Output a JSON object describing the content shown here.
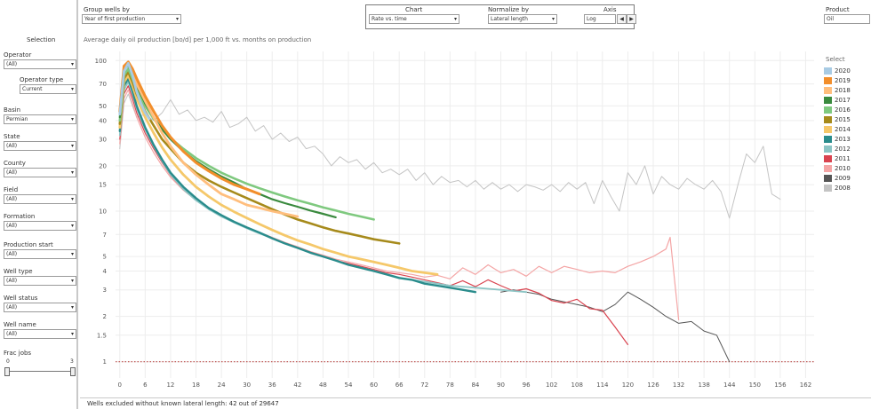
{
  "left_panel": {
    "title": "Selection",
    "filters": [
      {
        "label": "Operator",
        "value": "(All)"
      },
      {
        "label": "Operator type",
        "value": "Current"
      },
      {
        "label": "Basin",
        "value": "Permian"
      },
      {
        "label": "State",
        "value": "(All)"
      },
      {
        "label": "County",
        "value": "(All)"
      },
      {
        "label": "Field",
        "value": "(All)"
      },
      {
        "label": "Formation",
        "value": "(All)"
      },
      {
        "label": "Production start",
        "value": "(All)"
      },
      {
        "label": "Well type",
        "value": "(All)"
      },
      {
        "label": "Well status",
        "value": "(All)"
      },
      {
        "label": "Well name",
        "value": "(All)"
      }
    ],
    "frac_jobs": {
      "label": "Frac jobs",
      "min": "0",
      "max": "3"
    }
  },
  "controls": {
    "group_label": "Group wells by",
    "group_value": "Year of first production",
    "chart_label": "Chart",
    "chart_value": "Rate vs. time",
    "normalize_label": "Normalize by",
    "normalize_value": "Lateral length",
    "axis_label": "Axis",
    "axis_value": "Log",
    "product_label": "Product",
    "product_value": "Oil"
  },
  "status": "Wells excluded without known lateral length: 42 out of 29647",
  "legend_title": "Select",
  "chart_data": {
    "type": "line",
    "title": "Average daily oil production [bo/d] per 1,000 ft vs. months on production",
    "x_ticks": [
      0,
      6,
      12,
      18,
      24,
      30,
      36,
      42,
      48,
      54,
      60,
      66,
      72,
      78,
      84,
      90,
      96,
      102,
      108,
      114,
      120,
      126,
      132,
      138,
      144,
      150,
      156,
      162
    ],
    "y_ticks": [
      1,
      1.5,
      2,
      3,
      4,
      5,
      7,
      10,
      15,
      20,
      30,
      40,
      50,
      70,
      100
    ],
    "xlim": [
      -1,
      164
    ],
    "ylim": [
      0.78,
      115
    ],
    "yscale": "log",
    "reference_line": {
      "y": 1,
      "color": "#c0504d",
      "style": "dotted"
    },
    "series": [
      {
        "name": "2020",
        "color": "#a8cbe4",
        "x": [
          0,
          1,
          2,
          3,
          4,
          5,
          6,
          7
        ],
        "y": [
          44,
          85,
          96,
          80,
          62,
          52,
          45,
          41
        ]
      },
      {
        "name": "2019",
        "color": "#f28e2b",
        "x": [
          0,
          1,
          2,
          3,
          4,
          6,
          8,
          10,
          12,
          15,
          18,
          21,
          24,
          27,
          30,
          33
        ],
        "y": [
          46,
          92,
          98,
          88,
          76,
          58,
          46,
          37,
          31,
          25,
          21,
          18.5,
          16.5,
          15,
          14,
          13
        ]
      },
      {
        "name": "2018",
        "color": "#ffbe7d",
        "x": [
          0,
          1,
          2,
          3,
          4,
          6,
          8,
          10,
          12,
          15,
          18,
          21,
          24,
          27,
          30,
          33,
          36,
          39,
          42
        ],
        "y": [
          45,
          88,
          95,
          83,
          70,
          54,
          42,
          33,
          27,
          21,
          17.5,
          15,
          13,
          12,
          11,
          10.5,
          10,
          9.6,
          9.2
        ]
      },
      {
        "name": "2017",
        "color": "#3a8a3e",
        "x": [
          0,
          1,
          2,
          3,
          4,
          6,
          8,
          10,
          12,
          15,
          18,
          21,
          24,
          27,
          30,
          33,
          36,
          39,
          42,
          45,
          48,
          51
        ],
        "y": [
          42,
          86,
          93,
          80,
          68,
          52,
          42,
          35,
          30,
          25,
          21.5,
          19,
          17,
          15.5,
          14,
          13,
          12,
          11.3,
          10.7,
          10.1,
          9.6,
          9.1
        ]
      },
      {
        "name": "2016",
        "color": "#7fc97f",
        "x": [
          0,
          1,
          2,
          3,
          4,
          6,
          8,
          10,
          12,
          15,
          18,
          21,
          24,
          27,
          30,
          33,
          36,
          39,
          42,
          45,
          48,
          51,
          54,
          57,
          60
        ],
        "y": [
          40,
          80,
          88,
          76,
          64,
          50,
          41,
          35,
          30.5,
          26,
          22.5,
          20,
          18,
          16.5,
          15.2,
          14.2,
          13.3,
          12.5,
          11.8,
          11.2,
          10.6,
          10.1,
          9.6,
          9.2,
          8.8
        ]
      },
      {
        "name": "2015",
        "color": "#a68a1b",
        "x": [
          0,
          1,
          2,
          3,
          4,
          6,
          8,
          10,
          12,
          15,
          18,
          21,
          24,
          27,
          30,
          33,
          36,
          39,
          42,
          45,
          48,
          51,
          54,
          57,
          60,
          63,
          66
        ],
        "y": [
          38,
          76,
          84,
          72,
          60,
          46,
          37,
          30,
          26,
          21,
          18,
          16,
          14.5,
          13.3,
          12.2,
          11.2,
          10.3,
          9.5,
          8.8,
          8.3,
          7.8,
          7.4,
          7.1,
          6.8,
          6.5,
          6.3,
          6.1
        ]
      },
      {
        "name": "2014",
        "color": "#f5c86a",
        "x": [
          0,
          1,
          2,
          3,
          4,
          6,
          8,
          10,
          12,
          15,
          18,
          21,
          24,
          27,
          30,
          33,
          36,
          39,
          42,
          45,
          48,
          51,
          54,
          57,
          60,
          63,
          66,
          69,
          72,
          75
        ],
        "y": [
          36,
          72,
          80,
          68,
          56,
          42,
          33,
          26.5,
          22,
          17.5,
          14.5,
          12.5,
          11,
          9.9,
          9,
          8.2,
          7.5,
          6.9,
          6.4,
          6,
          5.6,
          5.3,
          5,
          4.8,
          4.6,
          4.4,
          4.2,
          4,
          3.9,
          3.8
        ]
      },
      {
        "name": "2013",
        "color": "#2a8c8c",
        "x": [
          0,
          1,
          2,
          3,
          4,
          6,
          8,
          10,
          12,
          15,
          18,
          21,
          24,
          27,
          30,
          33,
          36,
          39,
          42,
          45,
          48,
          51,
          54,
          57,
          60,
          63,
          66,
          69,
          72,
          75,
          78,
          81,
          84
        ],
        "y": [
          34,
          68,
          76,
          63,
          50,
          36,
          27.5,
          22,
          18,
          14.5,
          12.2,
          10.5,
          9.4,
          8.5,
          7.8,
          7.2,
          6.6,
          6.1,
          5.7,
          5.3,
          5,
          4.7,
          4.4,
          4.2,
          4,
          3.8,
          3.6,
          3.5,
          3.3,
          3.2,
          3.1,
          3,
          2.9
        ]
      },
      {
        "name": "2012",
        "color": "#8cc5c5",
        "x": [
          0,
          1,
          2,
          3,
          4,
          6,
          8,
          10,
          12,
          15,
          18,
          21,
          24,
          27,
          30,
          33,
          36,
          39,
          42,
          45,
          48,
          51,
          54,
          57,
          60,
          63,
          66,
          69,
          72,
          75,
          78,
          81,
          84,
          87,
          90,
          93,
          96
        ],
        "y": [
          32,
          64,
          72,
          60,
          48,
          35,
          27,
          21.5,
          17.5,
          14,
          11.8,
          10.3,
          9.2,
          8.4,
          7.7,
          7.1,
          6.6,
          6.1,
          5.7,
          5.3,
          5,
          4.7,
          4.4,
          4.2,
          4,
          3.8,
          3.6,
          3.5,
          3.4,
          3.3,
          3.2,
          3.15,
          3.1,
          3.05,
          3,
          2.95,
          2.9
        ]
      },
      {
        "name": "2011",
        "color": "#d9434f",
        "x": [
          0,
          1,
          2,
          3,
          4,
          6,
          8,
          10,
          12,
          15,
          18,
          21,
          24,
          27,
          30,
          33,
          36,
          39,
          42,
          45,
          48,
          51,
          54,
          57,
          60,
          63,
          66,
          69,
          72,
          75,
          78,
          81,
          84,
          87,
          90,
          93,
          96,
          99,
          102,
          105,
          108,
          111,
          114,
          117,
          120
        ],
        "y": [
          30,
          60,
          68,
          56,
          45,
          33,
          26,
          21,
          17.3,
          14,
          11.9,
          10.4,
          9.3,
          8.5,
          7.8,
          7.2,
          6.6,
          6.1,
          5.7,
          5.3,
          5,
          4.7,
          4.5,
          4.3,
          4.1,
          3.9,
          3.8,
          3.65,
          3.5,
          3.35,
          3.2,
          3.45,
          3.15,
          3.5,
          3.2,
          2.95,
          3.05,
          2.85,
          2.55,
          2.45,
          2.6,
          2.25,
          2.2,
          1.7,
          1.3
        ]
      },
      {
        "name": "2010",
        "color": "#f4a5a5",
        "x": [
          0,
          1,
          2,
          3,
          4,
          6,
          8,
          10,
          12,
          15,
          18,
          21,
          24,
          27,
          30,
          33,
          36,
          39,
          42,
          45,
          48,
          51,
          54,
          57,
          60,
          63,
          66,
          69,
          72,
          75,
          78,
          81,
          84,
          87,
          90,
          93,
          96,
          99,
          102,
          105,
          108,
          111,
          114,
          117,
          120,
          123,
          126,
          129,
          130,
          132
        ],
        "y": [
          28,
          56,
          64,
          52,
          42,
          31,
          24.5,
          20,
          16.8,
          13.8,
          11.8,
          10.4,
          9.3,
          8.5,
          7.8,
          7.2,
          6.7,
          6.2,
          5.8,
          5.4,
          5.1,
          4.8,
          4.6,
          4.4,
          4.2,
          4,
          3.9,
          3.8,
          3.65,
          3.75,
          3.55,
          4.2,
          3.8,
          4.4,
          3.9,
          4.1,
          3.7,
          4.3,
          3.9,
          4.3,
          4.1,
          3.9,
          4,
          3.9,
          4.3,
          4.6,
          5,
          5.6,
          6.7,
          1.9
        ]
      },
      {
        "name": "2009",
        "color": "#555555",
        "x": [
          90,
          93,
          96,
          99,
          102,
          105,
          108,
          111,
          114,
          117,
          120,
          123,
          126,
          129,
          132,
          135,
          138,
          141,
          144
        ],
        "y": [
          2.9,
          3,
          2.9,
          2.8,
          2.6,
          2.5,
          2.4,
          2.3,
          2.15,
          2.4,
          2.9,
          2.6,
          2.3,
          2,
          1.8,
          1.85,
          1.6,
          1.5,
          1
        ]
      },
      {
        "name": "2008",
        "color": "#c4c4c4",
        "x": [
          0,
          1,
          2,
          3,
          4,
          6,
          8,
          10,
          12,
          14,
          16,
          18,
          20,
          22,
          24,
          26,
          28,
          30,
          32,
          34,
          36,
          38,
          40,
          42,
          44,
          46,
          48,
          50,
          52,
          54,
          56,
          58,
          60,
          62,
          64,
          66,
          68,
          70,
          72,
          74,
          76,
          78,
          80,
          82,
          84,
          86,
          88,
          90,
          92,
          94,
          96,
          98,
          100,
          102,
          104,
          106,
          108,
          110,
          112,
          114,
          116,
          118,
          120,
          122,
          124,
          126,
          128,
          130,
          132,
          134,
          136,
          138,
          140,
          142,
          144,
          146,
          148,
          150,
          152,
          154,
          156
        ],
        "y": [
          26,
          52,
          60,
          50,
          42,
          44,
          40,
          45,
          55,
          44,
          47,
          40,
          42,
          39,
          46,
          36,
          38,
          42,
          34,
          37,
          30,
          33,
          29,
          31,
          26,
          27,
          24,
          20,
          23,
          21,
          22,
          19,
          21,
          18,
          19,
          17.5,
          19,
          16,
          18,
          15,
          17,
          15.5,
          16,
          14.5,
          16,
          14,
          15.5,
          14,
          15,
          13.5,
          15,
          14.5,
          13.8,
          15,
          13.5,
          15.5,
          14,
          15.5,
          11.2,
          16,
          12.5,
          10,
          18,
          15,
          20,
          13,
          17,
          15,
          14,
          16.5,
          15,
          14,
          16,
          13.5,
          9,
          15,
          24,
          21,
          27,
          13,
          12
        ]
      }
    ]
  }
}
